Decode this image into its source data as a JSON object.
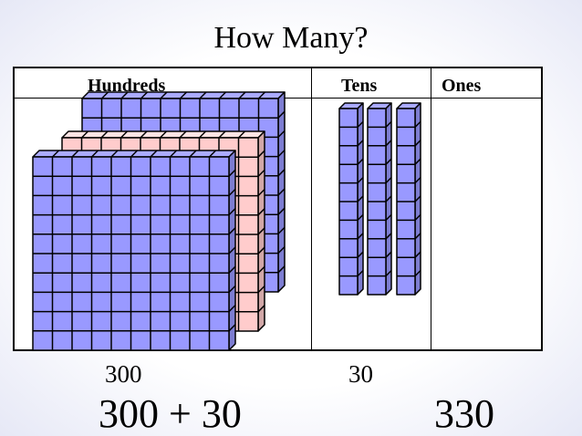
{
  "title": "How Many?",
  "columns": {
    "hundreds": "Hundreds",
    "tens": "Tens",
    "ones": "Ones"
  },
  "values": {
    "hundreds": "300",
    "tens": "30"
  },
  "equation": {
    "expression": "300 + 30",
    "result": "330"
  },
  "blocks": {
    "hundred_flats": 3,
    "ten_rods": 3,
    "ones": 0,
    "flat_colors": [
      "#9999ff",
      "#ffcccc",
      "#9999ff"
    ],
    "rod_color": "#9999ff"
  }
}
